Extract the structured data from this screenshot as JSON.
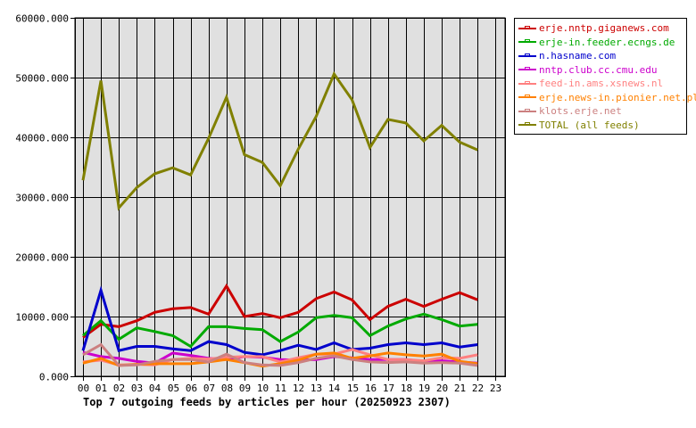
{
  "chart_data": {
    "type": "line",
    "title": "Top 7 outgoing feeds by articles per hour (20250923 2307)",
    "xlabel": "",
    "ylabel": "",
    "ylim": [
      0,
      60000
    ],
    "y_ticks": [
      "0.000",
      "10000.000",
      "20000.000",
      "30000.000",
      "40000.000",
      "50000.000",
      "60000.000"
    ],
    "grid": true,
    "legend_position": "right-top",
    "categories": [
      "00",
      "01",
      "02",
      "03",
      "04",
      "05",
      "06",
      "07",
      "08",
      "09",
      "10",
      "11",
      "12",
      "13",
      "14",
      "15",
      "16",
      "17",
      "18",
      "19",
      "20",
      "21",
      "22",
      "23"
    ],
    "series": [
      {
        "name": "erje.nntp.giganews.com",
        "color": "#cc0000",
        "values": [
          6500,
          8700,
          8300,
          9300,
          10700,
          11300,
          11500,
          10400,
          15100,
          10000,
          10500,
          9800,
          10700,
          13000,
          14100,
          12800,
          9500,
          11700,
          12900,
          11700,
          12900,
          14000,
          12800
        ]
      },
      {
        "name": "erje-in.feeder.ecngs.de",
        "color": "#00aa00",
        "values": [
          6800,
          9300,
          6200,
          8100,
          7500,
          6800,
          5000,
          8300,
          8300,
          8000,
          7800,
          5800,
          7400,
          9800,
          10200,
          9800,
          6800,
          8400,
          9600,
          10400,
          9500,
          8400,
          8700
        ]
      },
      {
        "name": "n.hasname.com",
        "color": "#0000cc",
        "values": [
          4300,
          14400,
          4300,
          5000,
          5000,
          4600,
          4300,
          5800,
          5300,
          4000,
          3600,
          4300,
          5200,
          4500,
          5600,
          4500,
          4700,
          5300,
          5600,
          5300,
          5600,
          4900,
          5300
        ]
      },
      {
        "name": "nntp.club.cc.cmu.edu",
        "color": "#cc00cc",
        "values": [
          4000,
          3300,
          3000,
          2500,
          2200,
          3900,
          3500,
          3000,
          2800,
          3300,
          3200,
          2800,
          2700,
          2800,
          3300,
          3100,
          2800,
          2800,
          2800,
          2500,
          2600,
          2400,
          2200
        ]
      },
      {
        "name": "feed-in.ams.xsnews.nl",
        "color": "#ff8080",
        "values": [
          2400,
          2700,
          1900,
          2000,
          1900,
          2800,
          3000,
          2900,
          3200,
          3300,
          3300,
          2400,
          3100,
          3700,
          3700,
          4500,
          3600,
          2800,
          2800,
          2600,
          3100,
          3000,
          3600
        ]
      },
      {
        "name": "erje.news-in.pionier.net.pl",
        "color": "#ff8000",
        "values": [
          2200,
          3000,
          1800,
          2000,
          2100,
          2100,
          2100,
          2400,
          2800,
          2300,
          1700,
          2100,
          2700,
          3700,
          3900,
          3000,
          3400,
          3900,
          3600,
          3400,
          3700,
          2500,
          2100
        ]
      },
      {
        "name": "klots.erje.net",
        "color": "#cc8080",
        "values": [
          3600,
          5300,
          1800,
          1900,
          2500,
          2800,
          2800,
          2400,
          3700,
          2300,
          1900,
          1800,
          2300,
          3000,
          3400,
          2800,
          2400,
          2300,
          2400,
          2200,
          2300,
          2200,
          1800
        ]
      },
      {
        "name": "TOTAL (all feeds)",
        "color": "#808000",
        "values": [
          32800,
          49500,
          28200,
          31600,
          33900,
          34900,
          33700,
          39800,
          46700,
          37100,
          35800,
          31900,
          38000,
          43500,
          50600,
          46300,
          38300,
          43000,
          42400,
          39400,
          42000,
          39200,
          37900
        ]
      }
    ]
  },
  "legend": {
    "items": [
      {
        "label": "erje.nntp.giganews.com",
        "color": "#cc0000"
      },
      {
        "label": "erje-in.feeder.ecngs.de",
        "color": "#00aa00"
      },
      {
        "label": "n.hasname.com",
        "color": "#0000cc"
      },
      {
        "label": "nntp.club.cc.cmu.edu",
        "color": "#cc00cc"
      },
      {
        "label": "feed-in.ams.xsnews.nl",
        "color": "#ff8080"
      },
      {
        "label": "erje.news-in.pionier.net.pl",
        "color": "#ff8000"
      },
      {
        "label": "klots.erje.net",
        "color": "#cc8080"
      },
      {
        "label": "TOTAL (all feeds)",
        "color": "#808000"
      }
    ]
  },
  "colors": {
    "plot_background": "#e0e0e0",
    "grid": "#000000"
  }
}
